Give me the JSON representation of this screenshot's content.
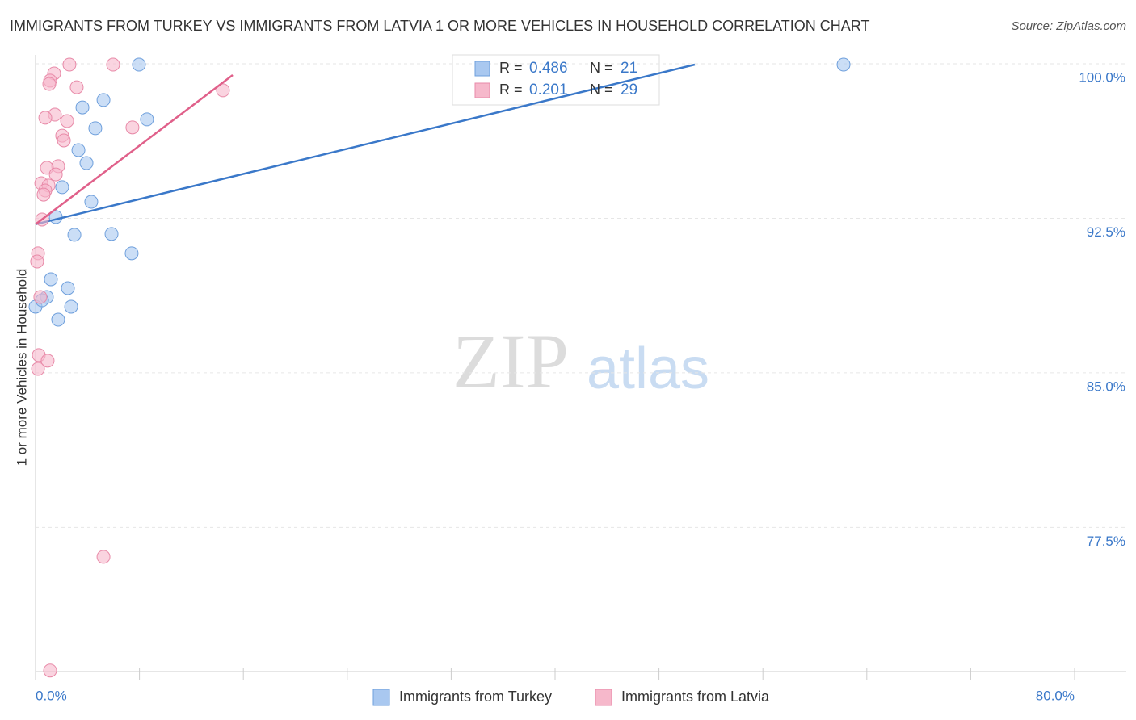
{
  "chart_data": {
    "type": "scatter",
    "title": "IMMIGRANTS FROM TURKEY VS IMMIGRANTS FROM LATVIA 1 OR MORE VEHICLES IN HOUSEHOLD CORRELATION CHART",
    "source": "Source: ZipAtlas.com",
    "y_label": "1 or more Vehicles in Household",
    "watermark": [
      "ZIP",
      "atlas"
    ],
    "xlim": [
      0,
      80
    ],
    "ylim": [
      70.5,
      100.6
    ],
    "xticks": [
      {
        "value": 0,
        "label": "0.0%"
      },
      {
        "value": 8,
        "label": null
      },
      {
        "value": 16,
        "label": null
      },
      {
        "value": 24,
        "label": null
      },
      {
        "value": 32,
        "label": null
      },
      {
        "value": 40,
        "label": null
      },
      {
        "value": 48,
        "label": null
      },
      {
        "value": 56,
        "label": null
      },
      {
        "value": 64,
        "label": null
      },
      {
        "value": 72,
        "label": null
      },
      {
        "value": 80,
        "label": "80.0%"
      }
    ],
    "yticks": [
      {
        "value": 77.5,
        "label": "77.5%"
      },
      {
        "value": 85,
        "label": "85.0%"
      },
      {
        "value": 92.5,
        "label": "92.5%"
      },
      {
        "value": 100,
        "label": "100.0%"
      }
    ],
    "grid": true,
    "series": [
      {
        "name": "Immigrants from Turkey",
        "color": "#a9c8f0",
        "stroke": "#6e9fdc",
        "line_color": "#3a78c9",
        "R_label": "R = ",
        "R": "0.486",
        "N_label": "N = ",
        "N": "21",
        "trend": {
          "x": [
            0,
            50.76
          ],
          "y": [
            92.21,
            99.96
          ]
        },
        "x": [
          0,
          0.87,
          1.18,
          2.49,
          2.74,
          1.74,
          1.56,
          2.05,
          2.99,
          4.29,
          3.92,
          3.3,
          4.6,
          3.61,
          5.23,
          8.58,
          5.85,
          7.4,
          7.96,
          62.21,
          0.5
        ],
        "values": [
          88.21,
          88.68,
          89.54,
          89.11,
          88.21,
          87.58,
          92.56,
          94.01,
          91.7,
          93.3,
          95.18,
          95.81,
          96.87,
          97.88,
          98.24,
          97.3,
          91.74,
          90.8,
          99.96,
          99.96,
          88.52
        ]
      },
      {
        "name": "Immigrants from Latvia",
        "color": "#f6b8cb",
        "stroke": "#e88aa8",
        "line_color": "#e0608a",
        "R_label": "R = ",
        "R": "0.201",
        "N_label": "N = ",
        "N": "29",
        "trend": {
          "x": [
            0,
            15.18
          ],
          "y": [
            92.21,
            99.45
          ]
        },
        "x": [
          2.61,
          5.97,
          1.43,
          1.12,
          1.06,
          3.17,
          14.43,
          1.49,
          0.75,
          2.43,
          7.46,
          2.05,
          2.18,
          1.74,
          0.87,
          1.56,
          0.44,
          1.0,
          0.75,
          0.62,
          0.5,
          0.19,
          0.12,
          0.37,
          0.25,
          0.93,
          0.19,
          5.23,
          1.12
        ],
        "values": [
          99.96,
          99.96,
          99.53,
          99.18,
          99.02,
          98.86,
          98.71,
          97.53,
          97.38,
          97.22,
          96.91,
          96.51,
          96.28,
          95.03,
          94.95,
          94.63,
          94.2,
          94.09,
          93.85,
          93.65,
          92.44,
          90.8,
          90.4,
          88.68,
          85.86,
          85.59,
          85.19,
          76.07,
          70.55
        ]
      }
    ]
  }
}
